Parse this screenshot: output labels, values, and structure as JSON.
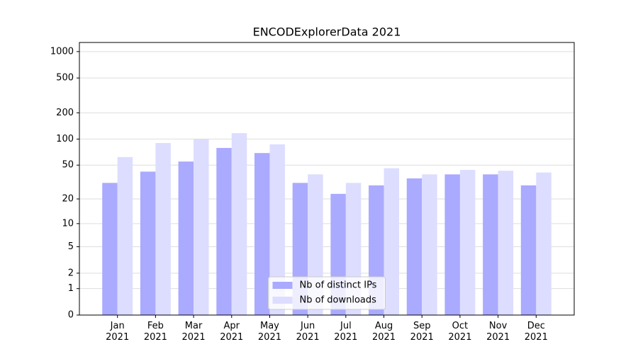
{
  "chart_data": {
    "type": "bar",
    "title": "ENCODExplorerData 2021",
    "categories": [
      "Jan\n2021",
      "Feb\n2021",
      "Mar\n2021",
      "Apr\n2021",
      "May\n2021",
      "Jun\n2021",
      "Jul\n2021",
      "Aug\n2021",
      "Sep\n2021",
      "Oct\n2021",
      "Nov\n2021",
      "Dec\n2021"
    ],
    "series": [
      {
        "name": "Nb of distinct IPs",
        "color": "#aaaaff",
        "values": [
          31,
          42,
          55,
          79,
          69,
          31,
          23,
          29,
          35,
          39,
          39,
          29
        ]
      },
      {
        "name": "Nb of downloads",
        "color": "#ddddff",
        "values": [
          62,
          90,
          100,
          117,
          87,
          39,
          31,
          46,
          39,
          44,
          43,
          41
        ]
      }
    ],
    "yscale": "log1p",
    "ylim": [
      0,
      1270
    ],
    "yticks": [
      0,
      1,
      2,
      5,
      10,
      20,
      50,
      100,
      200,
      500,
      1000
    ],
    "grid": true,
    "legend_position": "lower center"
  }
}
